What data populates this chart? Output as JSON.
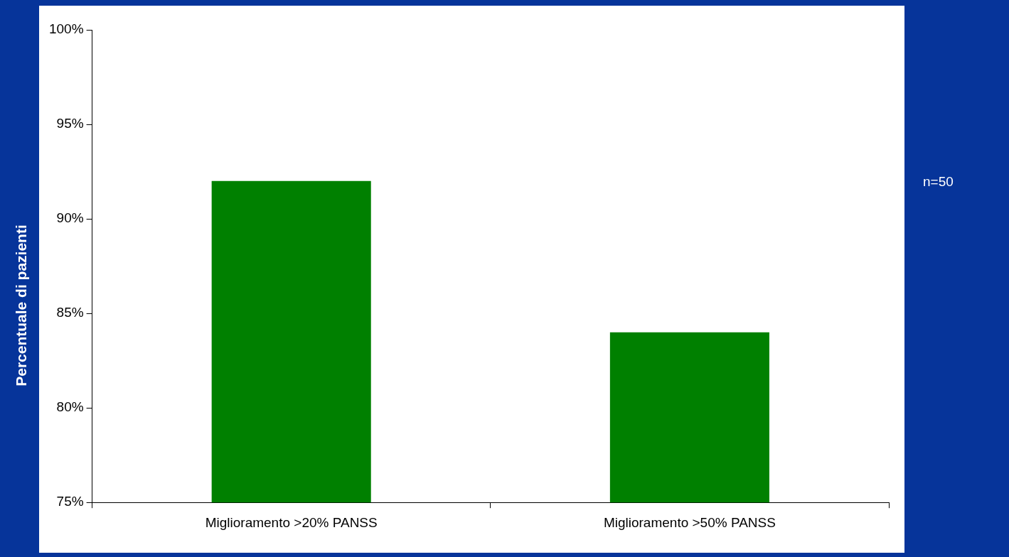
{
  "chart_data": {
    "type": "bar",
    "ylabel": "Percentuale di pazienti",
    "categories": [
      "Miglioramento >20% PANSS",
      "Miglioramento >50% PANSS"
    ],
    "values": [
      92,
      84
    ],
    "color": "#008000",
    "ylim": [
      75,
      100
    ],
    "yticks": [
      {
        "value": 75,
        "label": "75%"
      },
      {
        "value": 80,
        "label": "80%"
      },
      {
        "value": 85,
        "label": "85%"
      },
      {
        "value": 90,
        "label": "90%"
      },
      {
        "value": 95,
        "label": "95%"
      },
      {
        "value": 100,
        "label": "100%"
      }
    ],
    "grid": false,
    "legend": false,
    "annotations": [
      "n=50"
    ]
  }
}
